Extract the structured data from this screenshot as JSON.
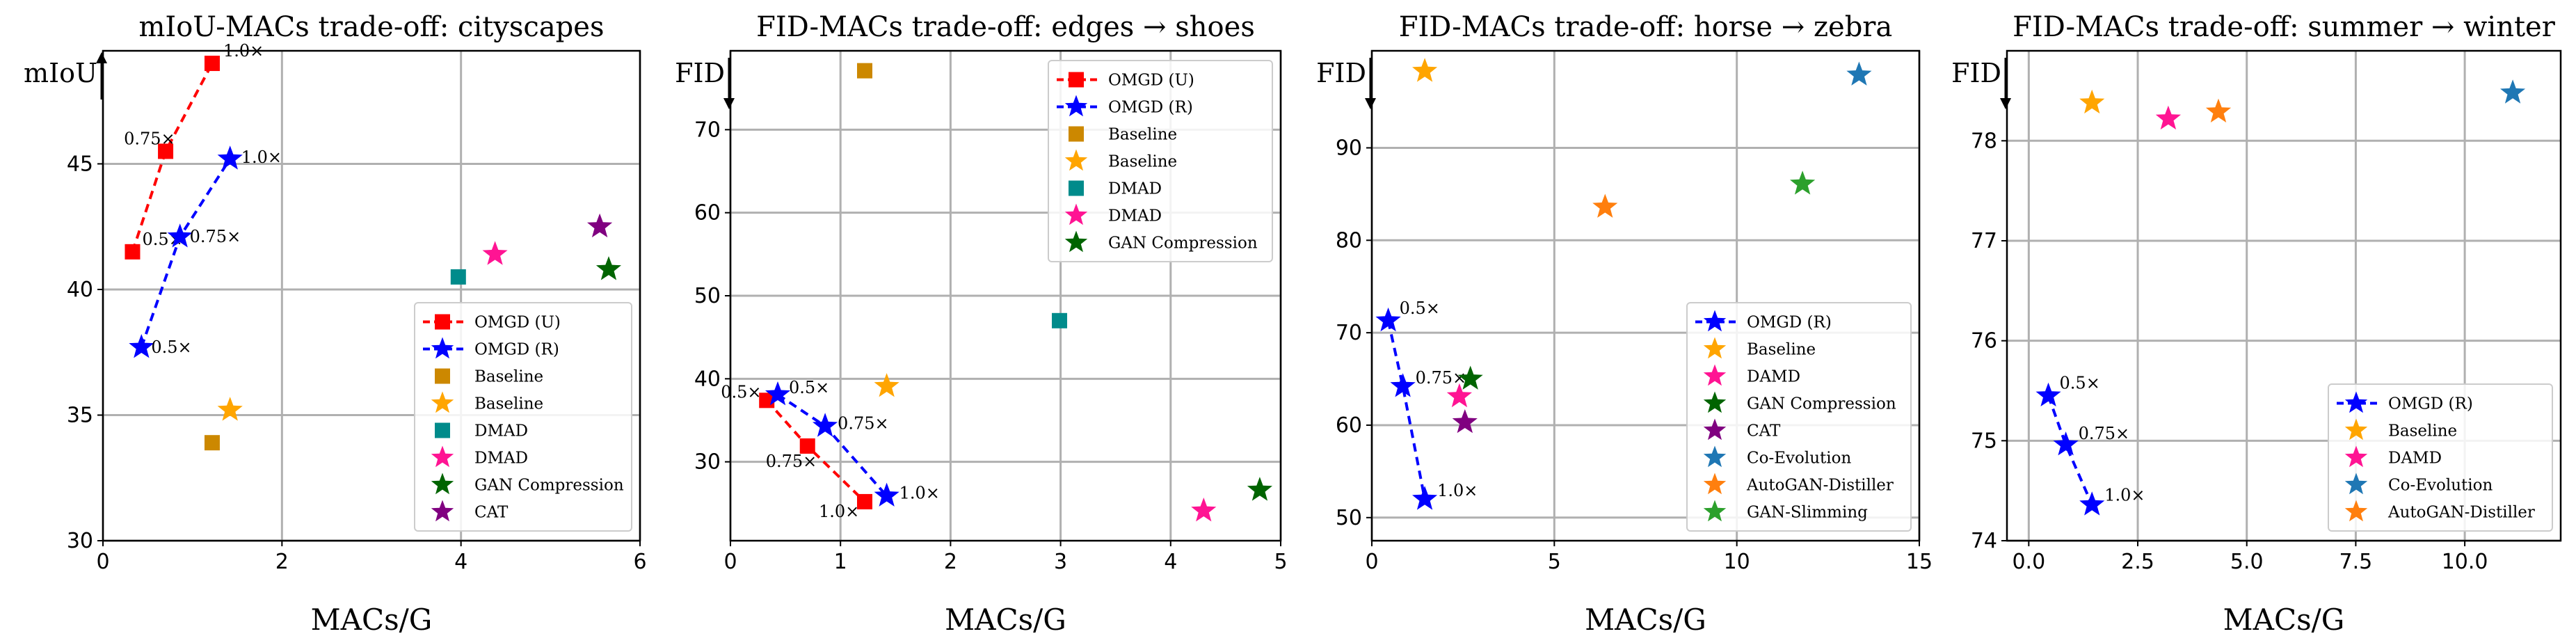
{
  "chart_data": [
    {
      "type": "scatter",
      "title": "mIoU-MACs trade-off: cityscapes",
      "xlabel": "MACs/G",
      "ylabel": "mIoU",
      "ylabel_arrow": "up",
      "xlim": [
        0,
        6
      ],
      "ylim": [
        30,
        49.5
      ],
      "xticks": [
        "0",
        "2",
        "4",
        "6"
      ],
      "yticks": [
        "30",
        "35",
        "40",
        "45"
      ],
      "grid": true,
      "legend_position": "lower right",
      "series": [
        {
          "name": "OMGD (U)",
          "marker": "square",
          "color": "#ff0000",
          "line": "dashed",
          "points": [
            [
              0.33,
              41.5
            ],
            [
              0.7,
              45.5
            ],
            [
              1.22,
              49.0
            ]
          ],
          "labels": [
            "0.5×",
            "0.75×",
            "1.0×"
          ]
        },
        {
          "name": "OMGD (R)",
          "marker": "star",
          "color": "#0000ff",
          "line": "dashed",
          "points": [
            [
              0.43,
              37.7
            ],
            [
              0.86,
              42.1
            ],
            [
              1.42,
              45.2
            ]
          ],
          "labels": [
            "0.5×",
            "0.75×",
            "1.0×"
          ]
        },
        {
          "name": "Baseline",
          "marker": "square",
          "color": "#cc8800",
          "points": [
            [
              1.22,
              33.9
            ]
          ]
        },
        {
          "name": "Baseline",
          "marker": "star",
          "color": "#ffa500",
          "points": [
            [
              1.42,
              35.2
            ]
          ]
        },
        {
          "name": "DMAD",
          "marker": "square",
          "color": "#008b8b",
          "points": [
            [
              3.97,
              40.5
            ]
          ]
        },
        {
          "name": "DMAD",
          "marker": "star",
          "color": "#ff1493",
          "points": [
            [
              4.38,
              41.4
            ]
          ]
        },
        {
          "name": "GAN Compression",
          "marker": "star",
          "color": "#006400",
          "points": [
            [
              5.65,
              40.8
            ]
          ]
        },
        {
          "name": "CAT",
          "marker": "star",
          "color": "#800080",
          "points": [
            [
              5.55,
              42.5
            ]
          ]
        }
      ]
    },
    {
      "type": "scatter",
      "title": "FID-MACs trade-off: edges → shoes",
      "xlabel": "MACs/G",
      "ylabel": "FID",
      "ylabel_arrow": "down",
      "xlim": [
        0,
        5
      ],
      "ylim": [
        20.5,
        79.5
      ],
      "xticks": [
        "0",
        "1",
        "2",
        "3",
        "4",
        "5"
      ],
      "yticks": [
        "30",
        "40",
        "50",
        "60",
        "70"
      ],
      "grid": true,
      "legend_position": "upper right",
      "series": [
        {
          "name": "OMGD (U)",
          "marker": "square",
          "color": "#ff0000",
          "line": "dashed",
          "points": [
            [
              0.33,
              37.4
            ],
            [
              0.7,
              31.9
            ],
            [
              1.22,
              25.2
            ]
          ],
          "labels": [
            "0.5×",
            "0.75×",
            "1.0×"
          ]
        },
        {
          "name": "OMGD (R)",
          "marker": "star",
          "color": "#0000ff",
          "line": "dashed",
          "points": [
            [
              0.43,
              38.1
            ],
            [
              0.86,
              34.3
            ],
            [
              1.42,
              25.9
            ]
          ],
          "labels": [
            "0.5×",
            "0.75×",
            "1.0×"
          ]
        },
        {
          "name": "Baseline",
          "marker": "square",
          "color": "#cc8800",
          "points": [
            [
              1.22,
              77.1
            ]
          ]
        },
        {
          "name": "Baseline",
          "marker": "star",
          "color": "#ffa500",
          "points": [
            [
              1.42,
              39.1
            ]
          ]
        },
        {
          "name": "DMAD",
          "marker": "square",
          "color": "#008b8b",
          "points": [
            [
              2.99,
              47.0
            ]
          ]
        },
        {
          "name": "DMAD",
          "marker": "star",
          "color": "#ff1493",
          "points": [
            [
              4.3,
              24.1
            ]
          ]
        },
        {
          "name": "GAN Compression",
          "marker": "star",
          "color": "#006400",
          "points": [
            [
              4.81,
              26.6
            ]
          ]
        }
      ]
    },
    {
      "type": "scatter",
      "title": "FID-MACs trade-off: horse → zebra",
      "xlabel": "MACs/G",
      "ylabel": "FID",
      "ylabel_arrow": "down",
      "xlim": [
        0,
        15
      ],
      "ylim": [
        47.5,
        100.5
      ],
      "xticks": [
        "0",
        "5",
        "10",
        "15"
      ],
      "yticks": [
        "50",
        "60",
        "70",
        "80",
        "90"
      ],
      "grid": true,
      "legend_position": "lower right",
      "series": [
        {
          "name": "OMGD (R)",
          "marker": "star",
          "color": "#0000ff",
          "line": "dashed",
          "points": [
            [
              0.45,
              71.3
            ],
            [
              0.85,
              64.2
            ],
            [
              1.45,
              52.0
            ]
          ],
          "labels": [
            "0.5×",
            "0.75×",
            "1.0×"
          ]
        },
        {
          "name": "Baseline",
          "marker": "star",
          "color": "#ffa500",
          "points": [
            [
              1.45,
              98.3
            ]
          ]
        },
        {
          "name": "DAMD",
          "marker": "star",
          "color": "#ff1493",
          "points": [
            [
              2.4,
              63.1
            ]
          ]
        },
        {
          "name": "GAN Compression",
          "marker": "star",
          "color": "#006400",
          "points": [
            [
              2.7,
              65.0
            ]
          ]
        },
        {
          "name": "CAT",
          "marker": "star",
          "color": "#800080",
          "points": [
            [
              2.55,
              60.3
            ]
          ]
        },
        {
          "name": "Co-Evolution",
          "marker": "star",
          "color": "#1f77b4",
          "points": [
            [
              13.35,
              97.9
            ]
          ]
        },
        {
          "name": "AutoGAN-Distiller",
          "marker": "star",
          "color": "#ff7f0e",
          "points": [
            [
              6.39,
              83.6
            ]
          ]
        },
        {
          "name": "GAN-Slimming",
          "marker": "star",
          "color": "#2ca02c",
          "points": [
            [
              11.8,
              86.1
            ]
          ]
        }
      ]
    },
    {
      "type": "scatter",
      "title": "FID-MACs trade-off: summer → winter",
      "xlabel": "MACs/G",
      "ylabel": "FID",
      "ylabel_arrow": "down",
      "xlim": [
        -0.5,
        12.2
      ],
      "ylim": [
        74.0,
        78.9
      ],
      "xticks": [
        "0.0",
        "2.5",
        "5.0",
        "7.5",
        "10.0"
      ],
      "yticks": [
        "74",
        "75",
        "76",
        "77",
        "78"
      ],
      "grid": true,
      "legend_position": "lower right",
      "series": [
        {
          "name": "OMGD (R)",
          "marker": "star",
          "color": "#0000ff",
          "line": "dashed",
          "points": [
            [
              0.45,
              75.45
            ],
            [
              0.85,
              74.96
            ],
            [
              1.45,
              74.36
            ]
          ],
          "labels": [
            "0.5×",
            "0.75×",
            "1.0×"
          ]
        },
        {
          "name": "Baseline",
          "marker": "star",
          "color": "#ffa500",
          "points": [
            [
              1.45,
              78.38
            ]
          ]
        },
        {
          "name": "DAMD",
          "marker": "star",
          "color": "#ff1493",
          "points": [
            [
              3.2,
              78.22
            ]
          ]
        },
        {
          "name": "Co-Evolution",
          "marker": "star",
          "color": "#1f77b4",
          "points": [
            [
              11.1,
              78.48
            ]
          ]
        },
        {
          "name": "AutoGAN-Distiller",
          "marker": "star",
          "color": "#ff7f0e",
          "points": [
            [
              4.35,
              78.29
            ]
          ]
        }
      ]
    }
  ]
}
